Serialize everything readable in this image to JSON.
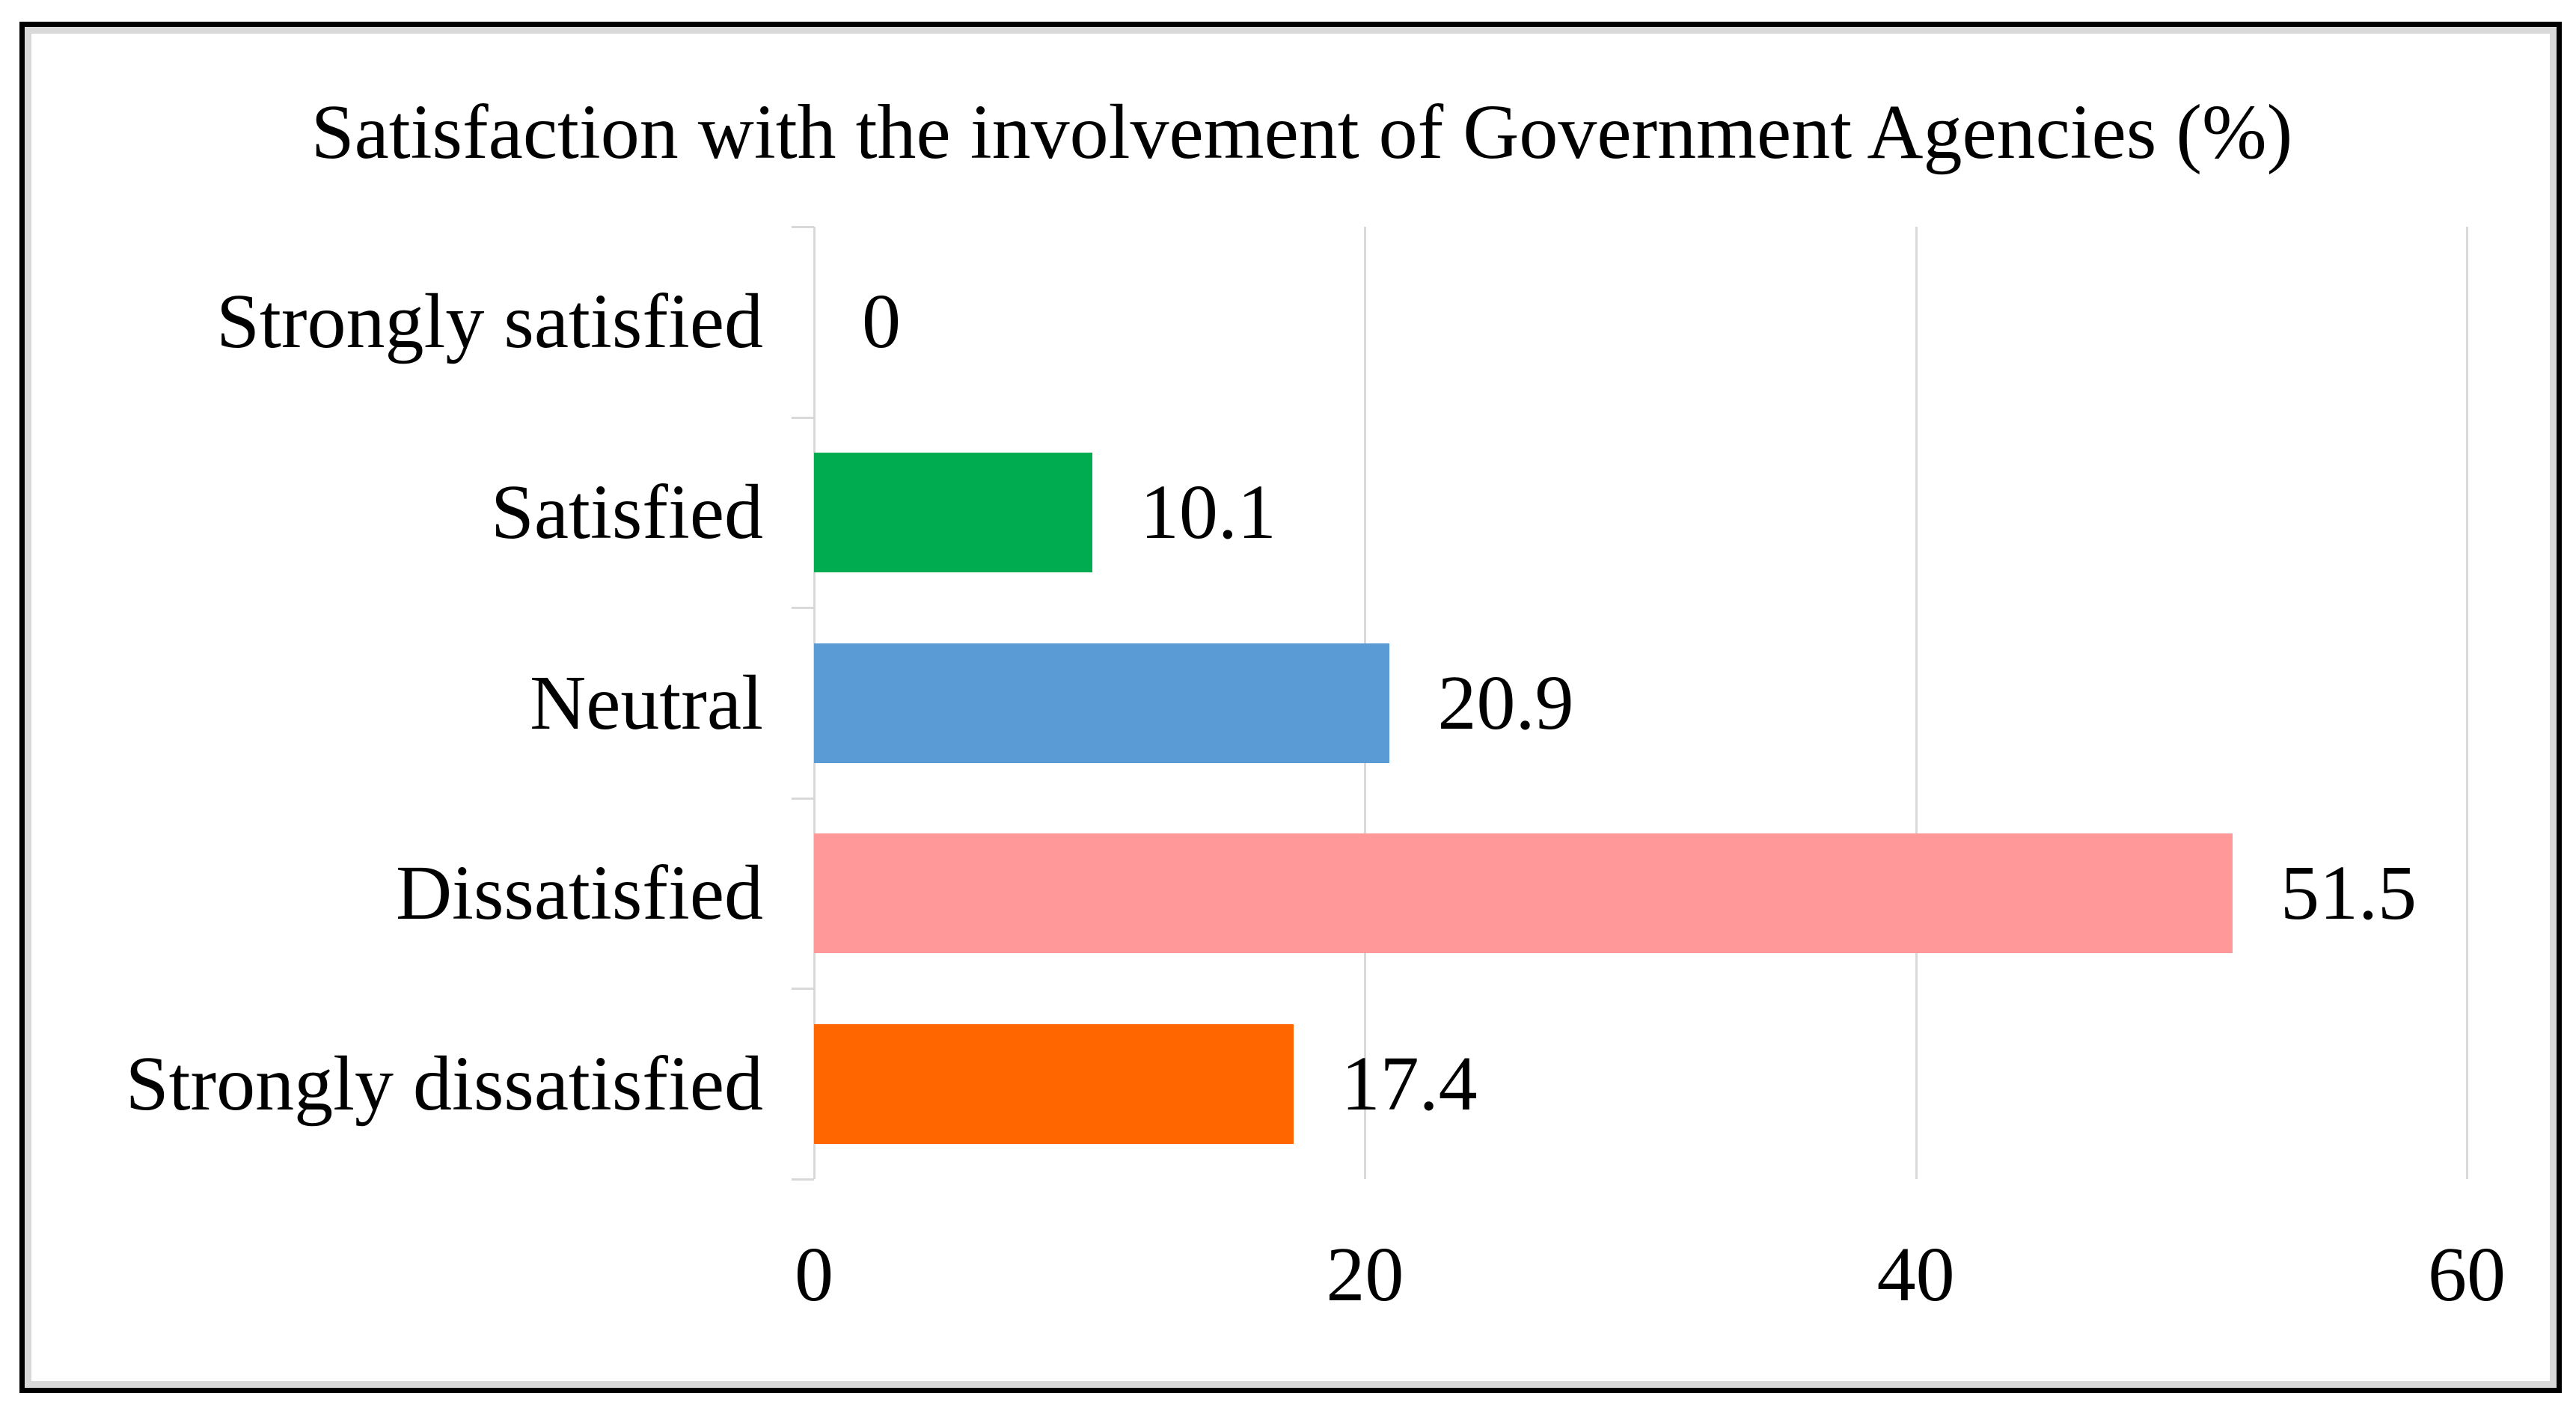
{
  "chart_data": {
    "type": "bar",
    "orientation": "horizontal",
    "title": "Satisfaction with the involvement of Government Agencies (%)",
    "categories": [
      "Strongly satisfied",
      "Satisfied",
      "Neutral",
      "Dissatisfied",
      "Strongly dissatisfied"
    ],
    "values": [
      0,
      10.1,
      20.9,
      51.5,
      17.4
    ],
    "value_labels": [
      "0",
      "10.1",
      "20.9",
      "51.5",
      "17.4"
    ],
    "bar_colors": [
      null,
      "#00AC50",
      "#5B9BD5",
      "#FF9999",
      "#FF6600"
    ],
    "xlim": [
      0,
      60
    ],
    "x_ticks": [
      0,
      20,
      40,
      60
    ],
    "x_tick_labels": [
      "0",
      "20",
      "40",
      "60"
    ],
    "grid": true,
    "legend": false,
    "xlabel": "",
    "ylabel": "",
    "colors": {
      "gridline": "#D9D9D9",
      "axis": "#D9D9D9",
      "text": "#000000",
      "frame_border": "#000000",
      "frame_inner_border": "#D9D9D9",
      "background": "#FFFFFF"
    }
  }
}
